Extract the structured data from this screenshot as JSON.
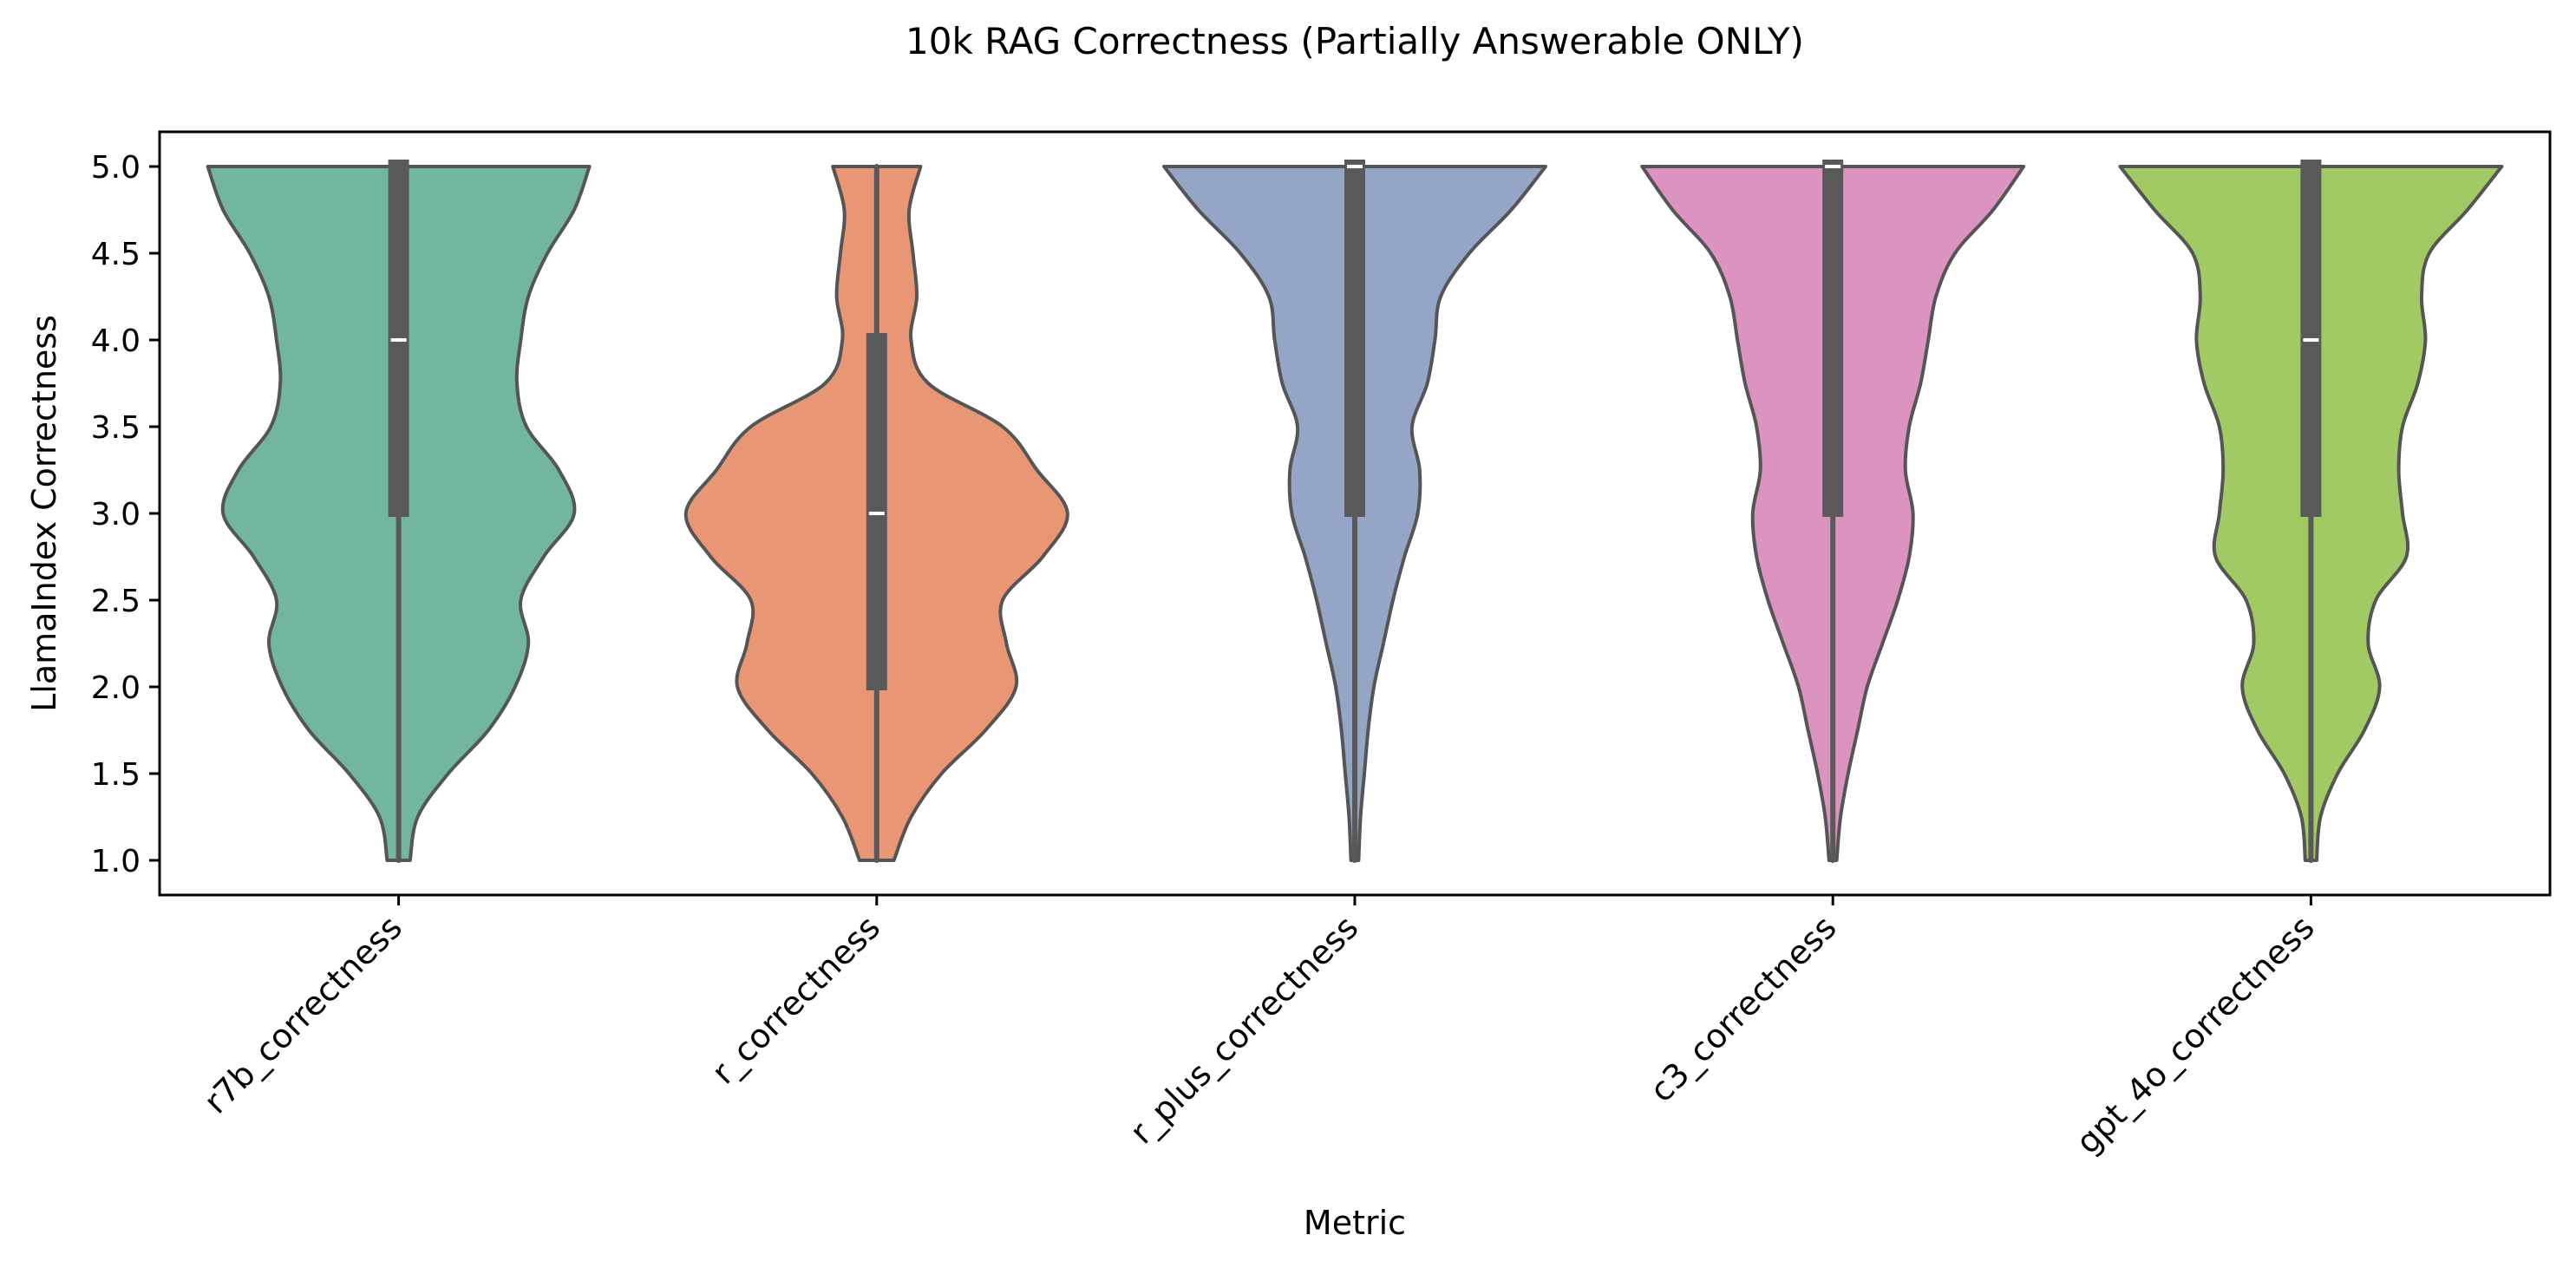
{
  "chart_data": {
    "type": "violin",
    "title": "10k RAG Correctness (Partially Answerable ONLY)",
    "xlabel": "Metric",
    "ylabel": "LlamaIndex Correctness",
    "ylim": [
      0.8,
      5.2
    ],
    "yticks": [
      "1.0",
      "1.5",
      "2.0",
      "2.5",
      "3.0",
      "3.5",
      "4.0",
      "4.5",
      "5.0"
    ],
    "grid": false,
    "legend": "none",
    "categories": [
      "r7b_correctness",
      "r_correctness",
      "r_plus_correctness",
      "c3_correctness",
      "gpt_4o_correctness"
    ],
    "colors": [
      "#72b6a0",
      "#e99675",
      "#95a5c6",
      "#db94bf",
      "#a1c964"
    ],
    "series": [
      {
        "values_y": [
          1.0,
          1.25,
          1.5,
          1.75,
          2.0,
          2.25,
          2.5,
          2.75,
          3.0,
          3.25,
          3.5,
          3.75,
          4.0,
          4.25,
          4.5,
          4.75,
          5.0
        ],
        "half_widths": [
          0.06,
          0.1,
          0.26,
          0.47,
          0.61,
          0.68,
          0.64,
          0.76,
          0.92,
          0.84,
          0.67,
          0.62,
          0.64,
          0.68,
          0.78,
          0.92,
          1.0
        ],
        "median": 4.0,
        "q1": 3.0,
        "q3": 5.0,
        "whisker_min": 1.0,
        "whisker_max": 5.0
      },
      {
        "values_y": [
          1.0,
          1.25,
          1.5,
          1.75,
          2.0,
          2.25,
          2.5,
          2.75,
          3.0,
          3.25,
          3.5,
          3.75,
          4.0,
          4.25,
          4.5,
          4.75,
          5.0
        ],
        "half_widths": [
          0.09,
          0.18,
          0.34,
          0.57,
          0.73,
          0.68,
          0.66,
          0.87,
          1.0,
          0.84,
          0.66,
          0.27,
          0.18,
          0.21,
          0.19,
          0.17,
          0.23
        ],
        "median": 3.0,
        "q1": 2.0,
        "q3": 4.0,
        "whisker_min": 1.0,
        "whisker_max": 5.0
      },
      {
        "values_y": [
          1.0,
          1.25,
          1.5,
          1.75,
          2.0,
          2.25,
          2.5,
          2.75,
          3.0,
          3.25,
          3.5,
          3.75,
          4.0,
          4.25,
          4.5,
          4.75,
          5.0
        ],
        "half_widths": [
          0.02,
          0.03,
          0.05,
          0.07,
          0.1,
          0.15,
          0.2,
          0.26,
          0.33,
          0.34,
          0.3,
          0.38,
          0.42,
          0.45,
          0.6,
          0.82,
          1.0
        ],
        "median": 5.0,
        "q1": 3.0,
        "q3": 5.0,
        "whisker_min": 1.0,
        "whisker_max": 5.0
      },
      {
        "values_y": [
          1.0,
          1.25,
          1.5,
          1.75,
          2.0,
          2.25,
          2.5,
          2.75,
          3.0,
          3.25,
          3.5,
          3.75,
          4.0,
          4.25,
          4.5,
          4.75,
          5.0
        ],
        "half_widths": [
          0.02,
          0.04,
          0.08,
          0.13,
          0.18,
          0.26,
          0.34,
          0.4,
          0.42,
          0.38,
          0.4,
          0.46,
          0.5,
          0.54,
          0.64,
          0.84,
          1.0
        ],
        "median": 5.0,
        "q1": 3.0,
        "q3": 5.0,
        "whisker_min": 1.0,
        "whisker_max": 5.0
      },
      {
        "values_y": [
          1.0,
          1.25,
          1.5,
          1.75,
          2.0,
          2.25,
          2.5,
          2.75,
          3.0,
          3.25,
          3.5,
          3.75,
          4.0,
          4.25,
          4.5,
          4.75,
          5.0
        ],
        "half_widths": [
          0.03,
          0.05,
          0.14,
          0.28,
          0.36,
          0.3,
          0.34,
          0.5,
          0.48,
          0.46,
          0.48,
          0.56,
          0.6,
          0.58,
          0.62,
          0.82,
          1.0
        ],
        "median": 4.0,
        "q1": 3.0,
        "q3": 5.0,
        "whisker_min": 1.0,
        "whisker_max": 5.0
      }
    ]
  }
}
